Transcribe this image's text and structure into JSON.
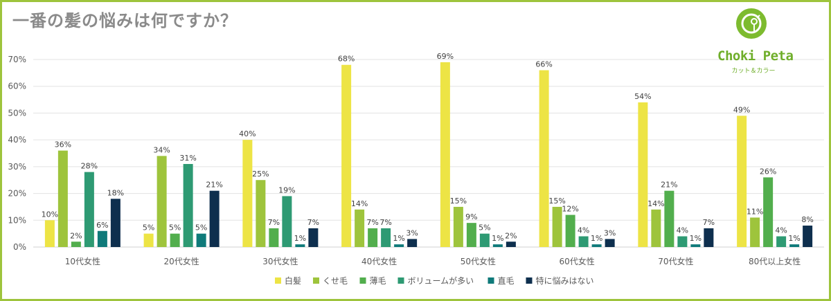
{
  "header": {
    "title": "一番の髪の悩みは何ですか？"
  },
  "logo": {
    "name": "Choki Peta",
    "sub": "カット＆カラー",
    "color": "#7dbb2f"
  },
  "chart_data": {
    "type": "bar",
    "categories": [
      "10代女性",
      "20代女性",
      "30代女性",
      "40代女性",
      "50代女性",
      "60代女性",
      "70代女性",
      "80代以上女性"
    ],
    "series": [
      {
        "name": "白髪",
        "color": "#ede445",
        "values": [
          10,
          5,
          40,
          68,
          69,
          66,
          54,
          49
        ]
      },
      {
        "name": "くせ毛",
        "color": "#9ec43c",
        "values": [
          36,
          34,
          25,
          14,
          15,
          15,
          14,
          11
        ]
      },
      {
        "name": "薄毛",
        "color": "#52ae4d",
        "values": [
          2,
          5,
          7,
          7,
          9,
          12,
          21,
          26
        ]
      },
      {
        "name": "ボリュームが多い",
        "color": "#2e9a73",
        "values": [
          28,
          31,
          19,
          7,
          5,
          4,
          4,
          4
        ]
      },
      {
        "name": "直毛",
        "color": "#0f7a7a",
        "values": [
          6,
          5,
          1,
          1,
          1,
          1,
          1,
          1
        ]
      },
      {
        "name": "特に悩みはない",
        "color": "#0e2f4e",
        "values": [
          18,
          21,
          7,
          3,
          2,
          3,
          7,
          8
        ]
      }
    ],
    "ylim": [
      0,
      70
    ],
    "yticks": [
      0,
      10,
      20,
      30,
      40,
      50,
      60,
      70
    ],
    "ytick_labels": [
      "0%",
      "10%",
      "20%",
      "30%",
      "40%",
      "50%",
      "60%",
      "70%"
    ],
    "value_suffix": "%",
    "grid": true,
    "legend": "bottom"
  }
}
